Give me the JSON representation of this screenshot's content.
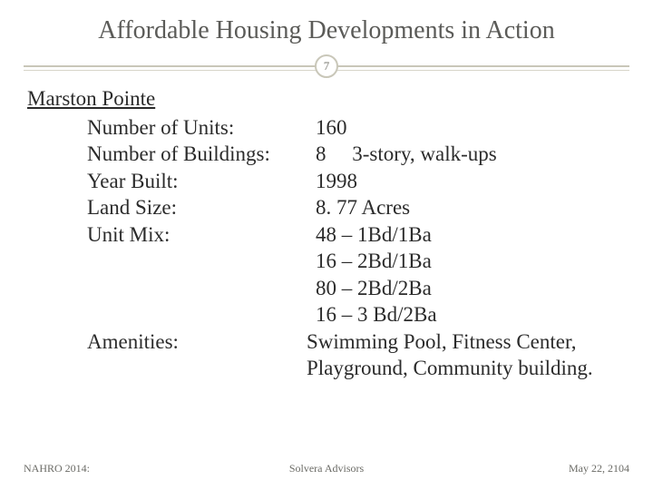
{
  "title": "Affordable Housing Developments in Action",
  "page_number": "7",
  "property_name": "Marston Pointe",
  "colors": {
    "title_text": "#5b5b58",
    "body_text": "#2b2b2b",
    "rule": "#c9c7b9",
    "footer_text": "#6b6b66",
    "background": "#ffffff"
  },
  "typography": {
    "title_fontsize_pt": 21,
    "body_fontsize_pt": 17,
    "footer_fontsize_pt": 9,
    "font_family": "Georgia serif"
  },
  "rows": [
    {
      "label": "Number of Units:",
      "value": "160"
    },
    {
      "label": "Number of Buildings:",
      "value": "8  3-story, walk-ups"
    },
    {
      "label": "Year Built:",
      "value": "1998"
    },
    {
      "label": "Land Size:",
      "value": "8. 77 Acres"
    },
    {
      "label": "Unit Mix:",
      "value": "48 – 1Bd/1Ba"
    },
    {
      "label": "",
      "value": "16 – 2Bd/1Ba"
    },
    {
      "label": "",
      "value": "80 – 2Bd/2Ba"
    },
    {
      "label": "",
      "value": "16 – 3 Bd/2Ba"
    },
    {
      "label": "Amenities:",
      "value": "Swimming Pool, Fitness Center, Playground, Community building.",
      "shift_left": true
    }
  ],
  "footer": {
    "left": "NAHRO 2014:",
    "center": "Solvera Advisors",
    "right": "May 22, 2104"
  }
}
